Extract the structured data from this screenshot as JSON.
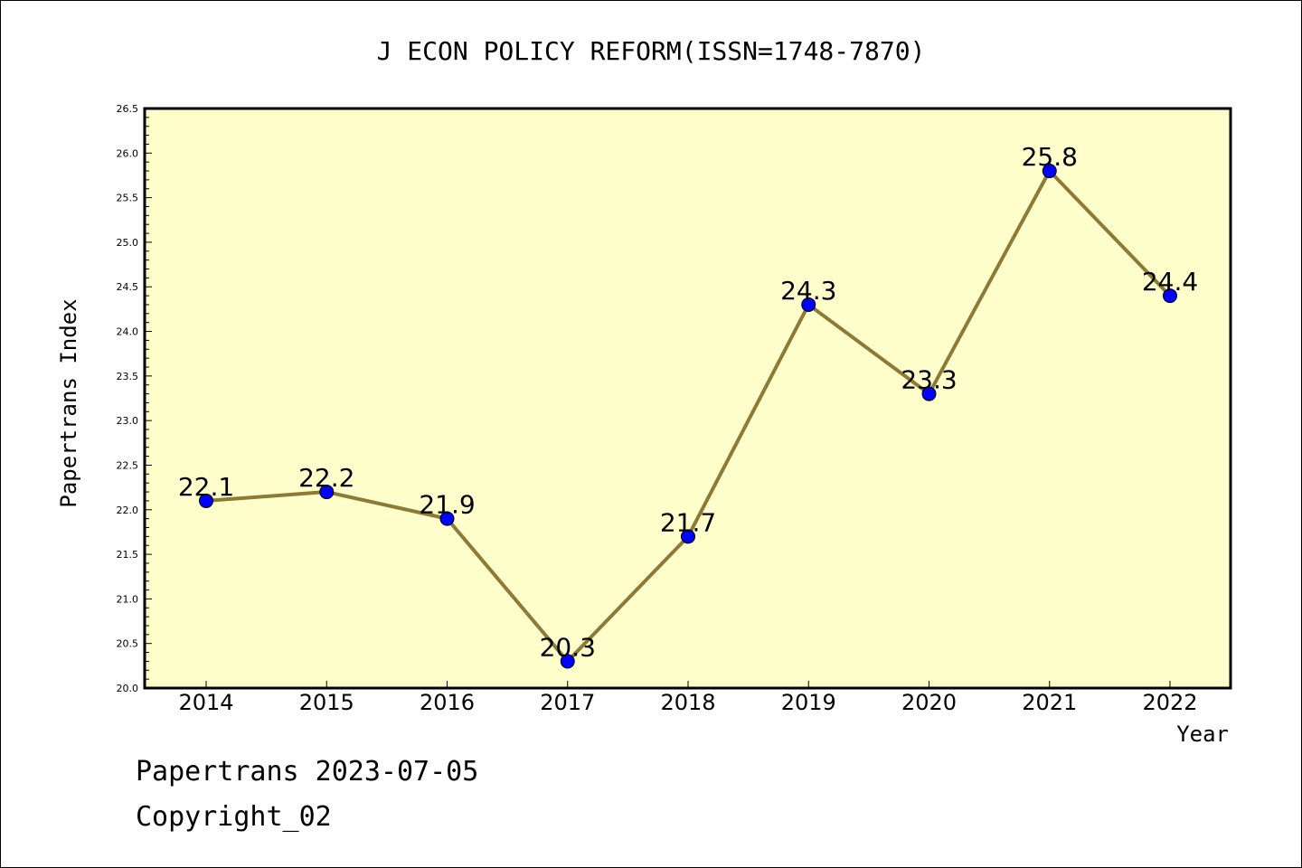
{
  "chart_data": {
    "type": "line",
    "title": "J ECON POLICY REFORM(ISSN=1748-7870)",
    "xlabel": "Year",
    "ylabel": "Papertrans Index",
    "categories": [
      "2014",
      "2015",
      "2016",
      "2017",
      "2018",
      "2019",
      "2020",
      "2021",
      "2022"
    ],
    "values": [
      22.1,
      22.2,
      21.9,
      20.3,
      21.7,
      24.3,
      23.3,
      25.8,
      24.4
    ],
    "data_labels": [
      "22.1",
      "22.2",
      "21.9",
      "20.3",
      "21.7",
      "24.3",
      "23.3",
      "25.8",
      "24.4"
    ],
    "ylim": [
      20.0,
      26.5
    ],
    "yticks": [
      "20.0",
      "20.5",
      "21.0",
      "21.5",
      "22.0",
      "22.5",
      "23.0",
      "23.5",
      "24.0",
      "24.5",
      "25.0",
      "25.5",
      "26.0",
      "26.5"
    ],
    "grid": false,
    "legend": "none",
    "colors": {
      "plot_background": "#ffffcc",
      "line": "#8c7a36",
      "marker": "#0000ff"
    }
  },
  "footer": {
    "line1": "Papertrans 2023-07-05",
    "line2": "Copyright_02"
  }
}
